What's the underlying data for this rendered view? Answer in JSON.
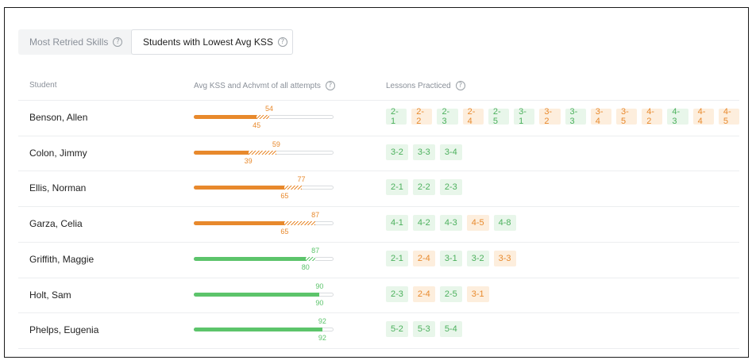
{
  "tabs": [
    {
      "label": "Most Retried Skills",
      "active": false
    },
    {
      "label": "Students with Lowest Avg KSS",
      "active": true
    }
  ],
  "columns": {
    "student": "Student",
    "avg": "Avg KSS and Achvmt of all attempts",
    "lessons": "Lessons Practiced"
  },
  "colors": {
    "orange": "#e8892c",
    "green": "#5cc46b"
  },
  "students": [
    {
      "name": "Benson, Allen",
      "kss": 45,
      "achv": 54,
      "status": "orange",
      "lessons": [
        [
          "2-1",
          "g"
        ],
        [
          "2-2",
          "o"
        ],
        [
          "2-3",
          "g"
        ],
        [
          "2-4",
          "o"
        ],
        [
          "2-5",
          "g"
        ],
        [
          "3-1",
          "g"
        ],
        [
          "3-2",
          "o"
        ],
        [
          "3-3",
          "g"
        ],
        [
          "3-4",
          "o"
        ],
        [
          "3-5",
          "o"
        ],
        [
          "4-2",
          "o"
        ],
        [
          "4-3",
          "g"
        ],
        [
          "4-4",
          "o"
        ],
        [
          "4-5",
          "o"
        ]
      ]
    },
    {
      "name": "Colon, Jimmy",
      "kss": 39,
      "achv": 59,
      "status": "orange",
      "lessons": [
        [
          "3-2",
          "g"
        ],
        [
          "3-3",
          "g"
        ],
        [
          "3-4",
          "g"
        ]
      ]
    },
    {
      "name": "Ellis, Norman",
      "kss": 65,
      "achv": 77,
      "status": "orange",
      "lessons": [
        [
          "2-1",
          "g"
        ],
        [
          "2-2",
          "g"
        ],
        [
          "2-3",
          "g"
        ]
      ]
    },
    {
      "name": "Garza, Celia",
      "kss": 65,
      "achv": 87,
      "status": "orange",
      "lessons": [
        [
          "4-1",
          "g"
        ],
        [
          "4-2",
          "g"
        ],
        [
          "4-3",
          "g"
        ],
        [
          "4-5",
          "o"
        ],
        [
          "4-8",
          "g"
        ]
      ]
    },
    {
      "name": "Griffith, Maggie",
      "kss": 80,
      "achv": 87,
      "status": "green",
      "lessons": [
        [
          "2-1",
          "g"
        ],
        [
          "2-4",
          "o"
        ],
        [
          "3-1",
          "g"
        ],
        [
          "3-2",
          "g"
        ],
        [
          "3-3",
          "o"
        ]
      ]
    },
    {
      "name": "Holt, Sam",
      "kss": 90,
      "achv": 90,
      "status": "green",
      "lessons": [
        [
          "2-3",
          "g"
        ],
        [
          "2-4",
          "o"
        ],
        [
          "2-5",
          "g"
        ],
        [
          "3-1",
          "o"
        ]
      ]
    },
    {
      "name": "Phelps, Eugenia",
      "kss": 92,
      "achv": 92,
      "status": "green",
      "lessons": [
        [
          "5-2",
          "g"
        ],
        [
          "5-3",
          "g"
        ],
        [
          "5-4",
          "g"
        ]
      ]
    }
  ]
}
